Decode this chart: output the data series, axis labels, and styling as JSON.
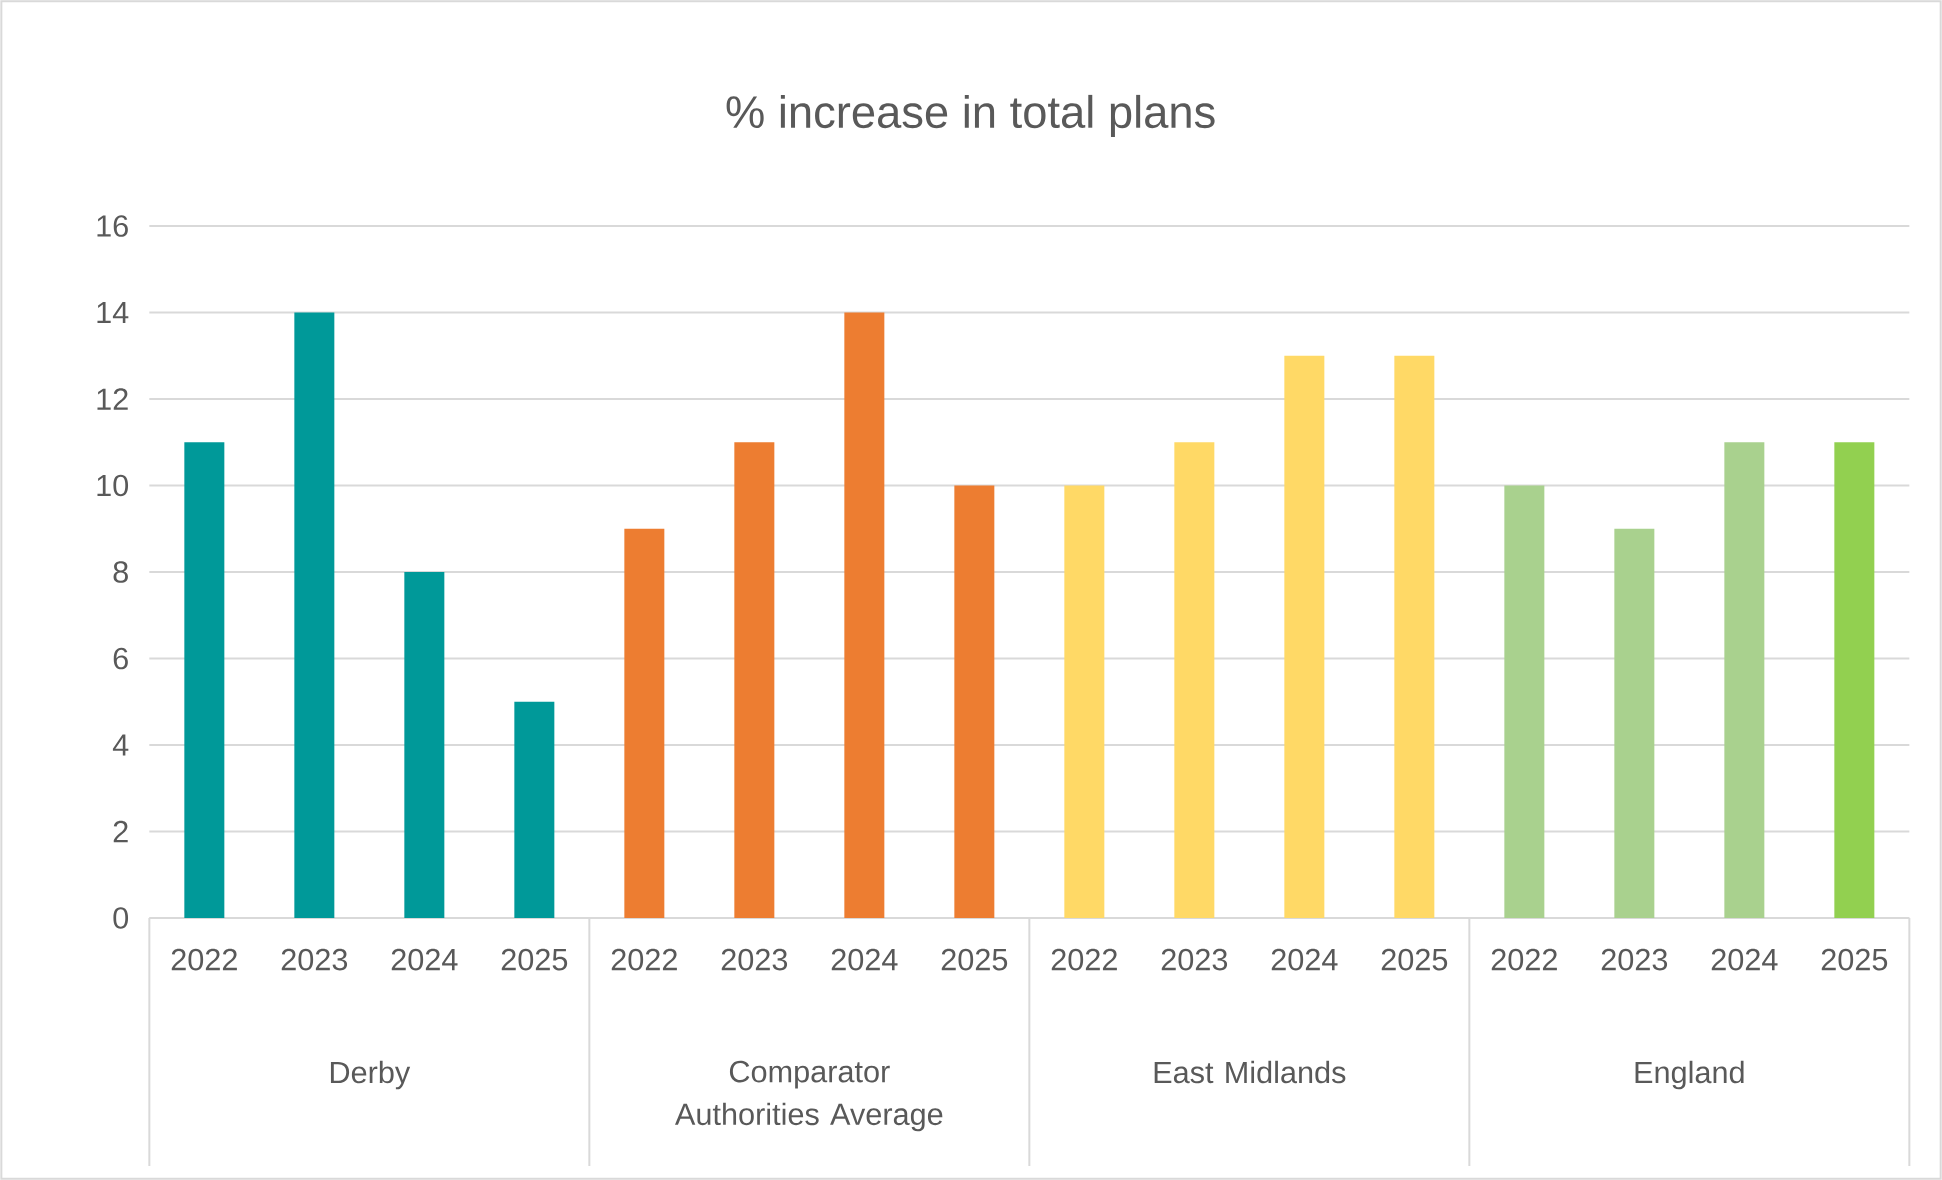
{
  "chart_data": {
    "type": "bar",
    "title": "% increase in total plans",
    "categories": [
      "2022",
      "2023",
      "2024",
      "2025",
      "2022",
      "2023",
      "2024",
      "2025",
      "2022",
      "2023",
      "2024",
      "2025",
      "2022",
      "2023",
      "2024",
      "2025"
    ],
    "values": [
      11,
      14,
      8,
      5,
      9,
      11,
      14,
      10,
      10,
      11,
      13,
      13,
      10,
      9,
      11,
      11
    ],
    "colors": [
      "#009999",
      "#009999",
      "#009999",
      "#009999",
      "#ed7d31",
      "#ed7d31",
      "#ed7d31",
      "#ed7d31",
      "#ffd966",
      "#ffd966",
      "#ffd966",
      "#ffd966",
      "#a9d18e",
      "#a9d18e",
      "#a9d18e",
      "#92d050"
    ],
    "annotations": [
      "Derby",
      "Comparator Authorities Average",
      "East Midlands",
      "England"
    ],
    "ylim": [
      0,
      16
    ],
    "yticks": [
      0,
      2,
      4,
      6,
      8,
      10,
      12,
      14,
      16
    ],
    "grid": "y"
  }
}
